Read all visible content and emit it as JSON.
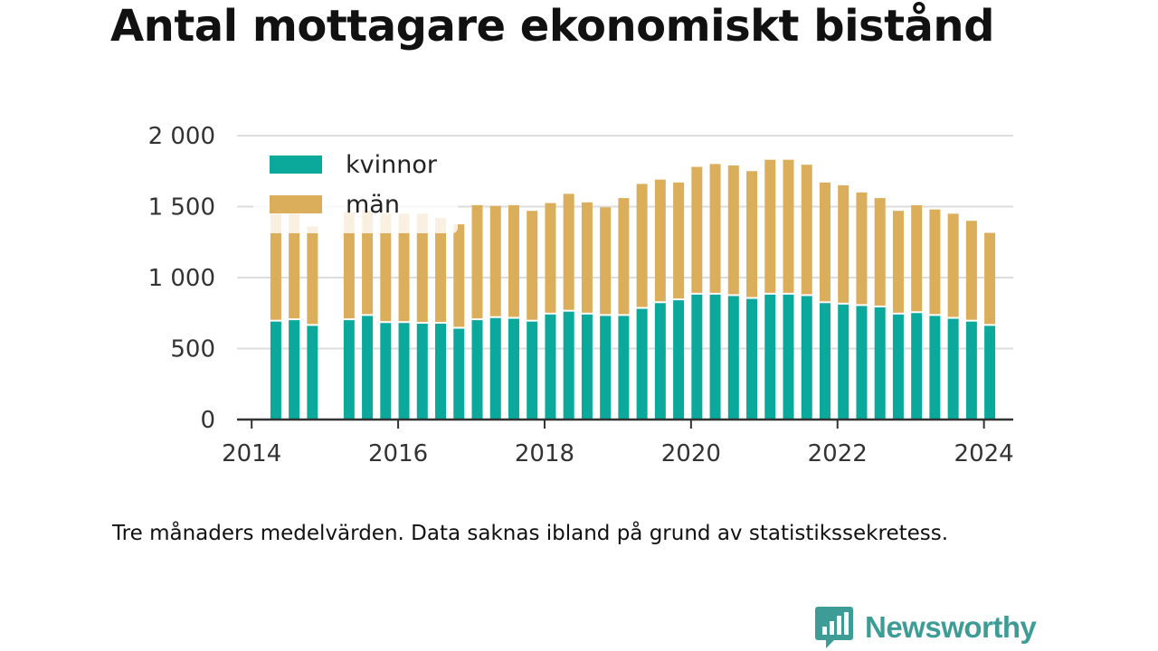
{
  "title": "Antal mottagare ekonomiskt bistånd",
  "caption": "Tre månaders medelvärden. Data saknas ibland på grund av statistikssekretess.",
  "brand": {
    "name": "Newsworthy",
    "icon": "newsworthy-logo-icon",
    "color": "#3e9c96"
  },
  "colors": {
    "kvinnor": "#0aa99b",
    "man": "#dbae5b",
    "grid": "#dddddd",
    "axis": "#333333",
    "text": "#333333"
  },
  "chart_data": {
    "type": "bar",
    "stacked": true,
    "x_unit": "year",
    "xlim": [
      2013.8,
      2024.4
    ],
    "ylim": [
      0,
      2000
    ],
    "y_ticks": [
      0,
      500,
      1000,
      1500,
      2000
    ],
    "y_tick_labels": [
      "0",
      "500",
      "1 000",
      "1 500",
      "2 000"
    ],
    "x_ticks": [
      2014,
      2016,
      2018,
      2020,
      2022,
      2024
    ],
    "x_tick_labels": [
      "2014",
      "2016",
      "2018",
      "2020",
      "2022",
      "2024"
    ],
    "grid": true,
    "legend_position": "top-left",
    "xlabel": "",
    "ylabel": "",
    "x": [
      2014.33,
      2014.58,
      2014.83,
      2015.33,
      2015.58,
      2015.83,
      2016.08,
      2016.33,
      2016.58,
      2016.83,
      2017.08,
      2017.33,
      2017.58,
      2017.83,
      2018.08,
      2018.33,
      2018.58,
      2018.83,
      2019.08,
      2019.33,
      2019.58,
      2019.83,
      2020.08,
      2020.33,
      2020.58,
      2020.83,
      2021.08,
      2021.33,
      2021.58,
      2021.83,
      2022.08,
      2022.33,
      2022.58,
      2022.83,
      2023.08,
      2023.33,
      2023.58,
      2023.83,
      2024.08
    ],
    "series": [
      {
        "name": "kvinnor",
        "values": [
          690,
          700,
          660,
          700,
          730,
          680,
          680,
          675,
          675,
          640,
          700,
          715,
          710,
          690,
          740,
          760,
          740,
          730,
          730,
          780,
          820,
          840,
          880,
          880,
          870,
          850,
          880,
          880,
          870,
          820,
          810,
          800,
          790,
          740,
          750,
          730,
          710,
          690,
          660
        ]
      },
      {
        "name": "män",
        "values": [
          760,
          750,
          700,
          760,
          740,
          770,
          770,
          775,
          745,
          735,
          810,
          790,
          800,
          780,
          785,
          830,
          790,
          765,
          830,
          880,
          870,
          830,
          900,
          920,
          920,
          900,
          950,
          950,
          925,
          850,
          840,
          800,
          770,
          730,
          760,
          750,
          740,
          710,
          655
        ]
      }
    ]
  }
}
